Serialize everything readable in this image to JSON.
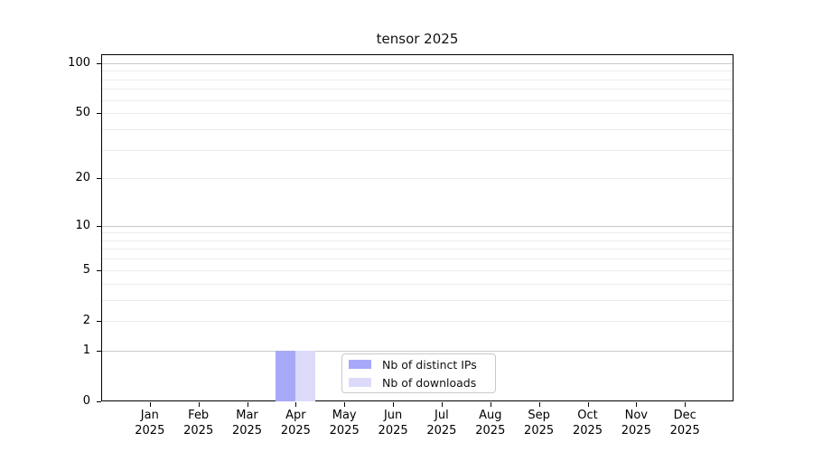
{
  "title": "tensor 2025",
  "chart_data": {
    "type": "bar",
    "title": "tensor 2025",
    "xlabel": "",
    "ylabel": "",
    "categories": [
      "Jan 2025",
      "Feb 2025",
      "Mar 2025",
      "Apr 2025",
      "May 2025",
      "Jun 2025",
      "Jul 2025",
      "Aug 2025",
      "Sep 2025",
      "Oct 2025",
      "Nov 2025",
      "Dec 2025"
    ],
    "category_month_lines": [
      "Jan",
      "Feb",
      "Mar",
      "Apr",
      "May",
      "Jun",
      "Jul",
      "Aug",
      "Sep",
      "Oct",
      "Nov",
      "Dec"
    ],
    "category_year_lines": [
      "2025",
      "2025",
      "2025",
      "2025",
      "2025",
      "2025",
      "2025",
      "2025",
      "2025",
      "2025",
      "2025",
      "2025"
    ],
    "series": [
      {
        "name": "Nb of distinct IPs",
        "color": "#a8a8f8",
        "values": [
          0,
          0,
          0,
          1,
          0,
          0,
          0,
          0,
          0,
          0,
          0,
          0
        ]
      },
      {
        "name": "Nb of downloads",
        "color": "#dbdbf9",
        "values": [
          0,
          0,
          0,
          1,
          0,
          0,
          0,
          0,
          0,
          0,
          0,
          0
        ]
      }
    ],
    "y_axis": {
      "scale": "log1p",
      "tick_values": [
        0,
        1,
        2,
        5,
        10,
        20,
        50,
        100
      ],
      "tick_labels": [
        "0",
        "1",
        "2",
        "5",
        "10",
        "20",
        "50",
        "100"
      ],
      "decade_gridline_values": [
        1,
        10,
        100
      ],
      "minor_gridline_values": [
        3,
        4,
        6,
        7,
        8,
        9,
        30,
        40,
        60,
        70,
        80,
        90
      ],
      "axis_max": 113
    },
    "legend": {
      "position": "bottom-center",
      "items": [
        {
          "label": "Nb of distinct IPs",
          "color": "#a8a8f8"
        },
        {
          "label": "Nb of downloads",
          "color": "#dbdbf9"
        }
      ]
    },
    "grid": true
  },
  "colors": {
    "background": "#ffffff",
    "spine": "#000000",
    "grid_decade": "#c9c9c9",
    "grid_minor": "#ebebeb",
    "text": "#111111"
  }
}
